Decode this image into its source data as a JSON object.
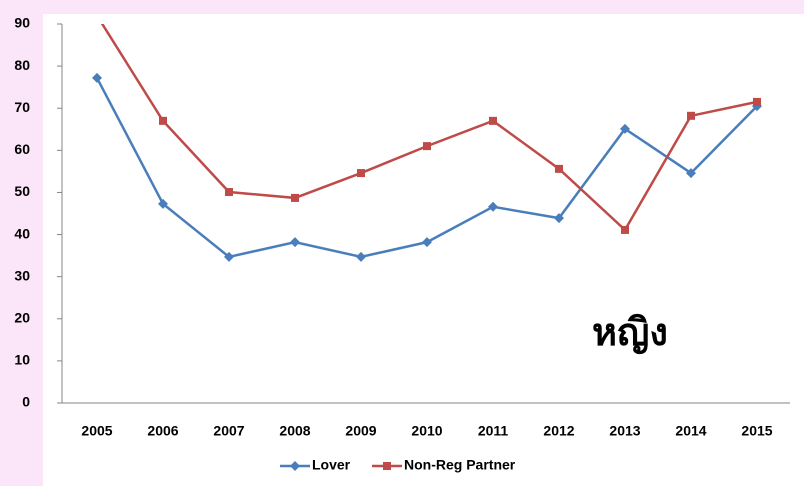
{
  "chart_data": {
    "type": "line",
    "annotation": "หญิง",
    "categories": [
      "2005",
      "2006",
      "2007",
      "2008",
      "2009",
      "2010",
      "2011",
      "2012",
      "2013",
      "2014",
      "2015"
    ],
    "series": [
      {
        "name": "Lover",
        "color": "#4a7ebb",
        "marker": "diamond",
        "values": [
          77.2,
          47.3,
          34.7,
          38.2,
          34.7,
          38.2,
          46.6,
          43.9,
          65.1,
          54.6,
          70.5
        ]
      },
      {
        "name": "Non-Reg Partner",
        "color": "#be4b48",
        "marker": "square",
        "values": [
          92,
          67,
          50.1,
          48.7,
          54.6,
          61,
          67,
          55.6,
          41.1,
          68.2,
          71.5
        ]
      }
    ],
    "ylim": [
      0,
      90
    ],
    "yticks": [
      0,
      10,
      20,
      30,
      40,
      50,
      60,
      70,
      80,
      90
    ],
    "legend": "bottom"
  }
}
